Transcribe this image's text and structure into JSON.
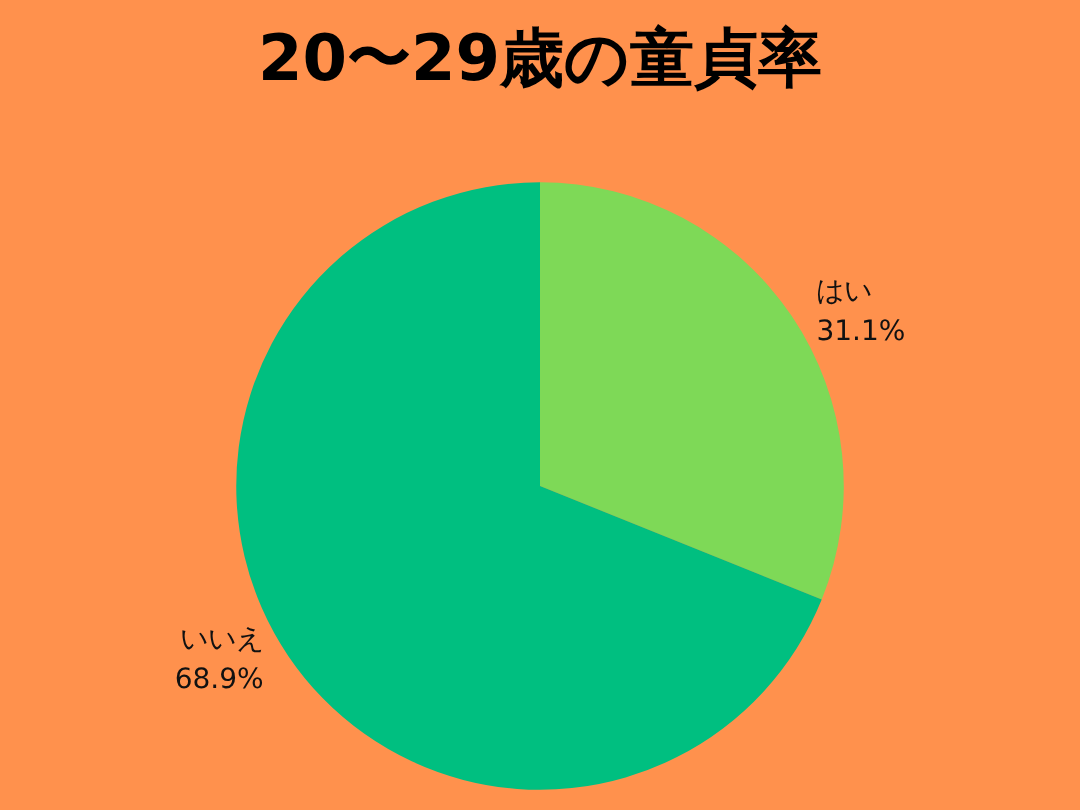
{
  "chart_data": {
    "type": "pie",
    "title": "20〜29歳の童貞率",
    "categories": [
      "はい",
      "いいえ"
    ],
    "values": [
      31.1,
      68.9
    ],
    "value_labels": [
      "31.1%",
      "68.9%"
    ],
    "colors": [
      "#7ed957",
      "#00bf80"
    ],
    "legend": false
  }
}
